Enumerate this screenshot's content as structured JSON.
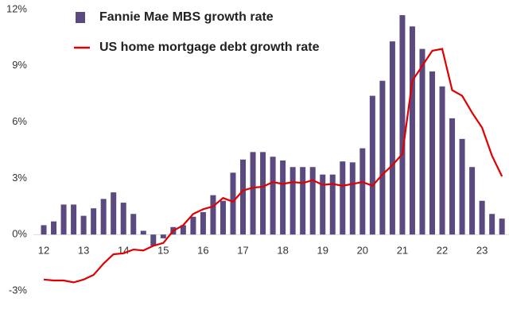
{
  "chart_data": {
    "type": "bar-line",
    "x": [
      12,
      12.25,
      12.5,
      12.75,
      13,
      13.25,
      13.5,
      13.75,
      14,
      14.25,
      14.5,
      14.75,
      15,
      15.25,
      15.5,
      15.75,
      16,
      16.25,
      16.5,
      16.75,
      17,
      17.25,
      17.5,
      17.75,
      18,
      18.25,
      18.5,
      18.75,
      19,
      19.25,
      19.5,
      19.75,
      20,
      20.25,
      20.5,
      20.75,
      21,
      21.25,
      21.5,
      21.75,
      22,
      22.25,
      22.5,
      22.75,
      23,
      23.25,
      23.5
    ],
    "series": [
      {
        "name": "Fannie Mae MBS growth rate",
        "type": "bar",
        "color": "#5b4a80",
        "values": [
          0.5,
          0.7,
          1.6,
          1.6,
          1.0,
          1.4,
          1.9,
          2.25,
          1.7,
          1.1,
          0.2,
          -0.6,
          -0.2,
          0.4,
          0.5,
          0.95,
          1.2,
          2.1,
          1.8,
          3.3,
          4.0,
          4.4,
          4.4,
          4.15,
          3.95,
          3.6,
          3.6,
          3.6,
          3.2,
          3.2,
          3.9,
          3.85,
          4.6,
          7.4,
          8.2,
          10.3,
          11.7,
          11.1,
          9.9,
          8.7,
          7.9,
          6.2,
          5.1,
          3.6,
          1.8,
          1.1,
          0.85
        ]
      },
      {
        "name": "US home mortgage debt growth rate",
        "type": "line",
        "color": "#e00000",
        "values": [
          -2.4,
          -2.45,
          -2.45,
          -2.55,
          -2.4,
          -2.15,
          -1.55,
          -1.05,
          -1.0,
          -0.8,
          -0.85,
          -0.6,
          -0.45,
          0.2,
          0.5,
          1.1,
          1.35,
          1.5,
          1.95,
          1.75,
          2.35,
          2.5,
          2.55,
          2.8,
          2.7,
          2.8,
          2.75,
          2.9,
          2.65,
          2.7,
          2.6,
          2.7,
          2.8,
          2.6,
          3.2,
          3.7,
          4.3,
          8.2,
          9.0,
          9.8,
          9.9,
          7.7,
          7.4,
          6.5,
          5.7,
          4.2,
          3.1
        ]
      }
    ],
    "xlim": [
      11.9,
      23.65
    ],
    "xticks": [
      12,
      13,
      14,
      15,
      16,
      17,
      18,
      19,
      20,
      21,
      22,
      23
    ],
    "ylim": [
      -3,
      12
    ],
    "yticks": [
      {
        "value": -3,
        "label": "-3%"
      },
      {
        "value": 0,
        "label": "0%"
      },
      {
        "value": 3,
        "label": "3%"
      },
      {
        "value": 6,
        "label": "6%"
      },
      {
        "value": 9,
        "label": "9%"
      },
      {
        "value": 12,
        "label": "12%"
      }
    ],
    "grid": false,
    "legend": "top-left"
  }
}
